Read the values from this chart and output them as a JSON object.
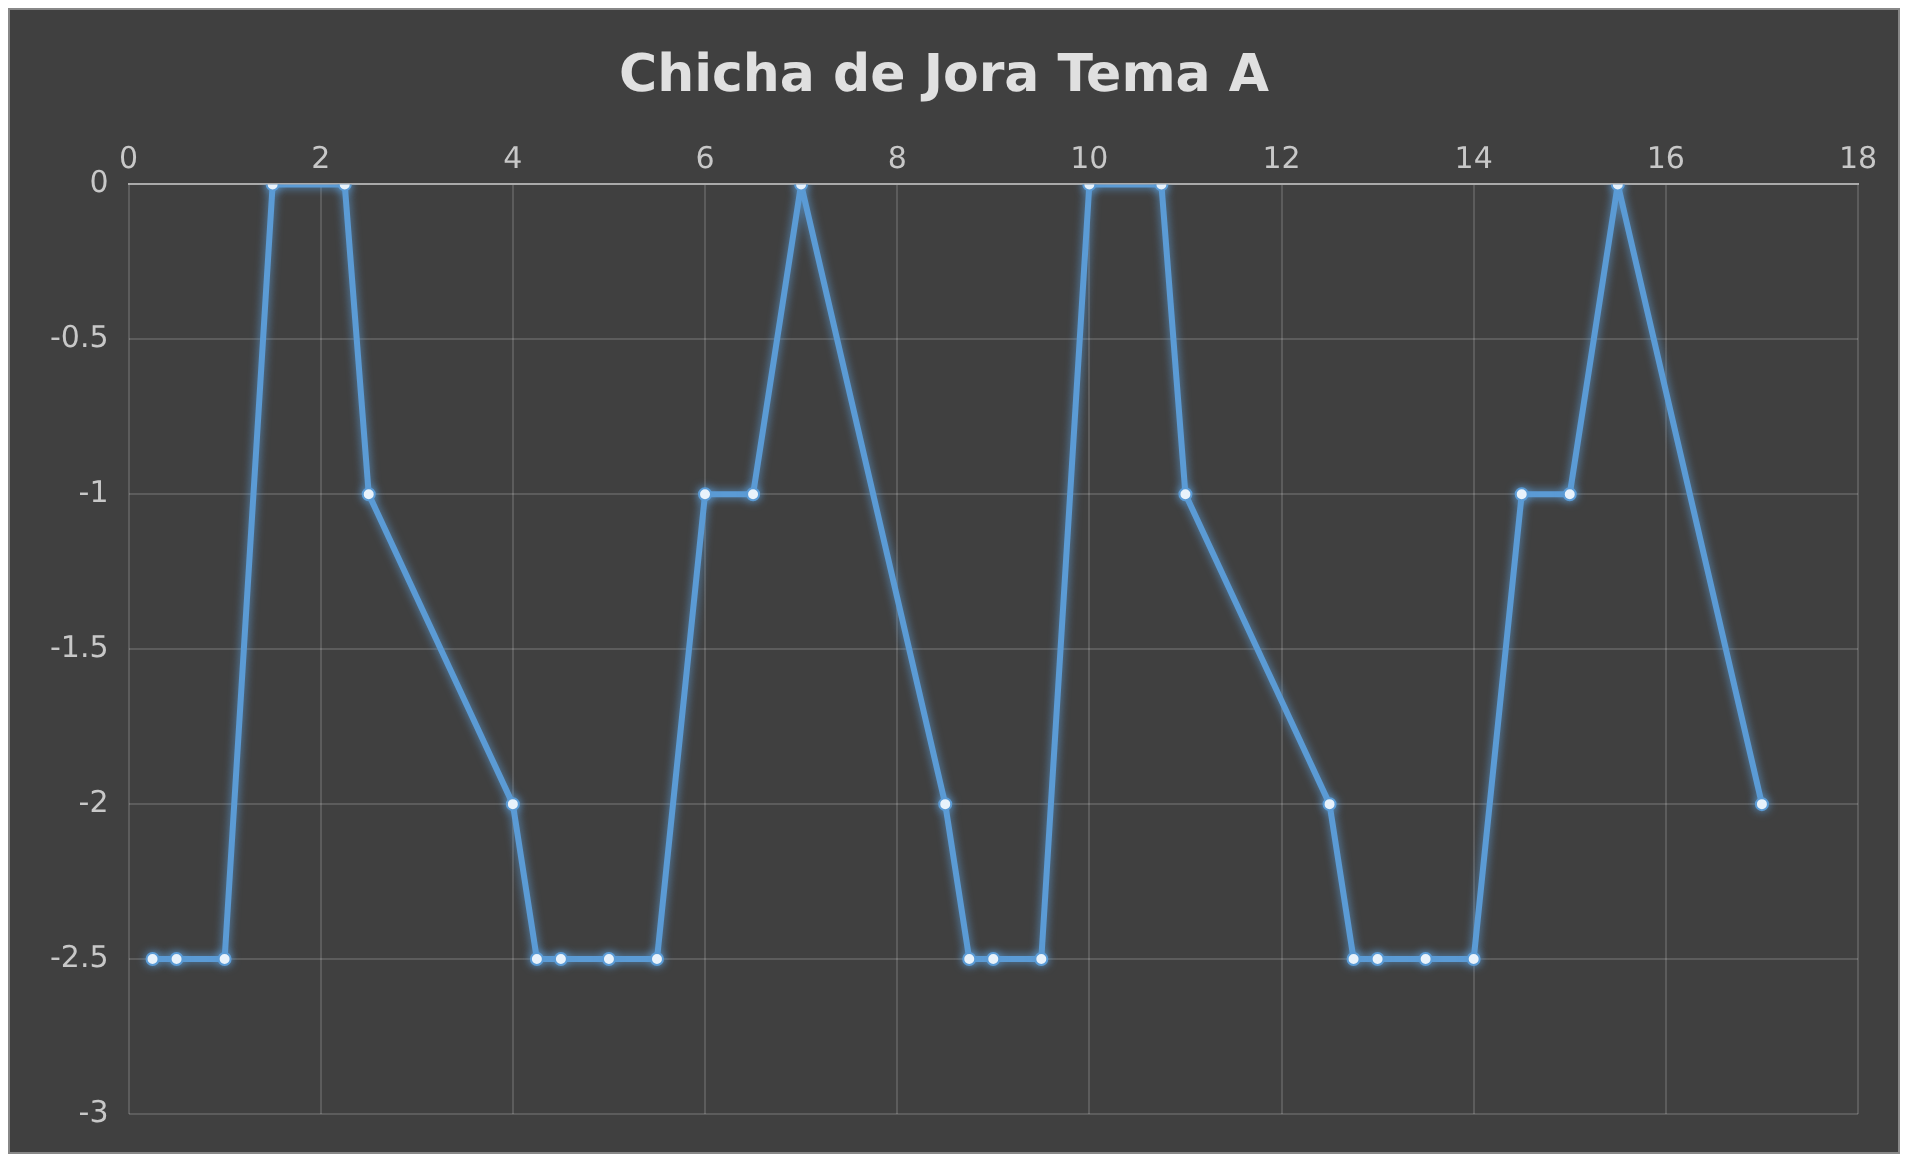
{
  "chart_data": {
    "type": "line",
    "title": "Chicha de Jora Tema A",
    "x": [
      0.25,
      0.5,
      1,
      1.5,
      2.25,
      2.5,
      4,
      4.25,
      4.5,
      5,
      5.5,
      6,
      6.5,
      7,
      8.5,
      8.75,
      9,
      9.5,
      10,
      10.75,
      11,
      12.5,
      12.75,
      13,
      13.5,
      14,
      14.5,
      15,
      15.5,
      17
    ],
    "series": [
      {
        "color": "#5b9bd5",
        "values": [
          -2.5,
          -2.5,
          -2.5,
          0,
          0,
          -1,
          -2,
          -2.5,
          -2.5,
          -2.5,
          -2.5,
          -1,
          -1,
          0,
          -2,
          -2.5,
          -2.5,
          -2.5,
          0,
          0,
          -1,
          -2,
          -2.5,
          -2.5,
          -2.5,
          -2.5,
          -1,
          -1,
          0,
          -2
        ]
      }
    ],
    "xlim": [
      0,
      18
    ],
    "xticks": [
      0,
      2,
      4,
      6,
      8,
      10,
      12,
      14,
      16,
      18
    ],
    "ylim": [
      -3,
      0
    ],
    "yticks": [
      -3,
      -2.5,
      -2,
      -1.5,
      -1,
      -0.5,
      0
    ],
    "grid": true,
    "marker": "circle",
    "line_style": "solid"
  }
}
